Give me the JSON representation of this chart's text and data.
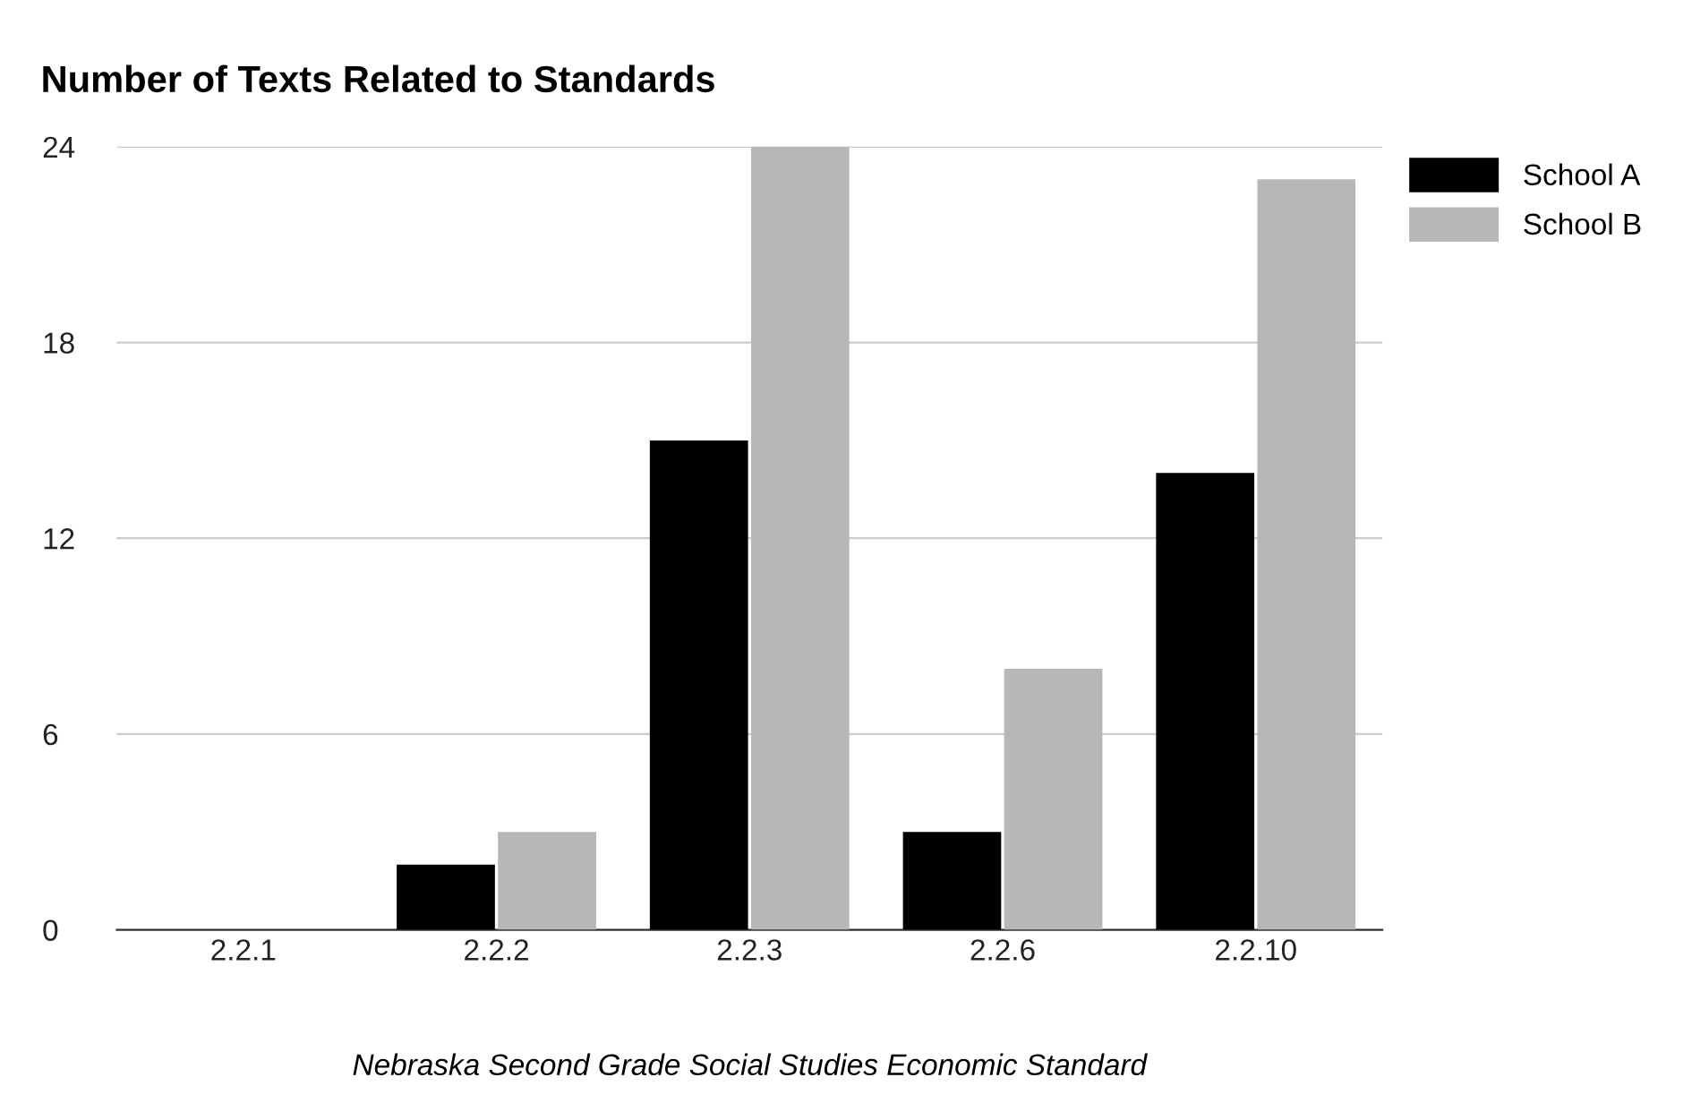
{
  "chart_data": {
    "type": "bar",
    "title": "Number of Texts Related to Standards",
    "xlabel": "Nebraska Second Grade Social Studies Economic Standard",
    "categories": [
      "2.2.1",
      "2.2.2",
      "2.2.3",
      "2.2.6",
      "2.2.10"
    ],
    "series": [
      {
        "name": "School A",
        "color": "#000000",
        "values": [
          0,
          2,
          15,
          3,
          14
        ]
      },
      {
        "name": "School B",
        "color": "#b7b7b7",
        "values": [
          0,
          3,
          24,
          8,
          23
        ]
      }
    ],
    "ylim": [
      0,
      24
    ],
    "yticks": [
      0,
      6,
      12,
      18,
      24
    ],
    "grid": "y",
    "legend": "top right"
  }
}
